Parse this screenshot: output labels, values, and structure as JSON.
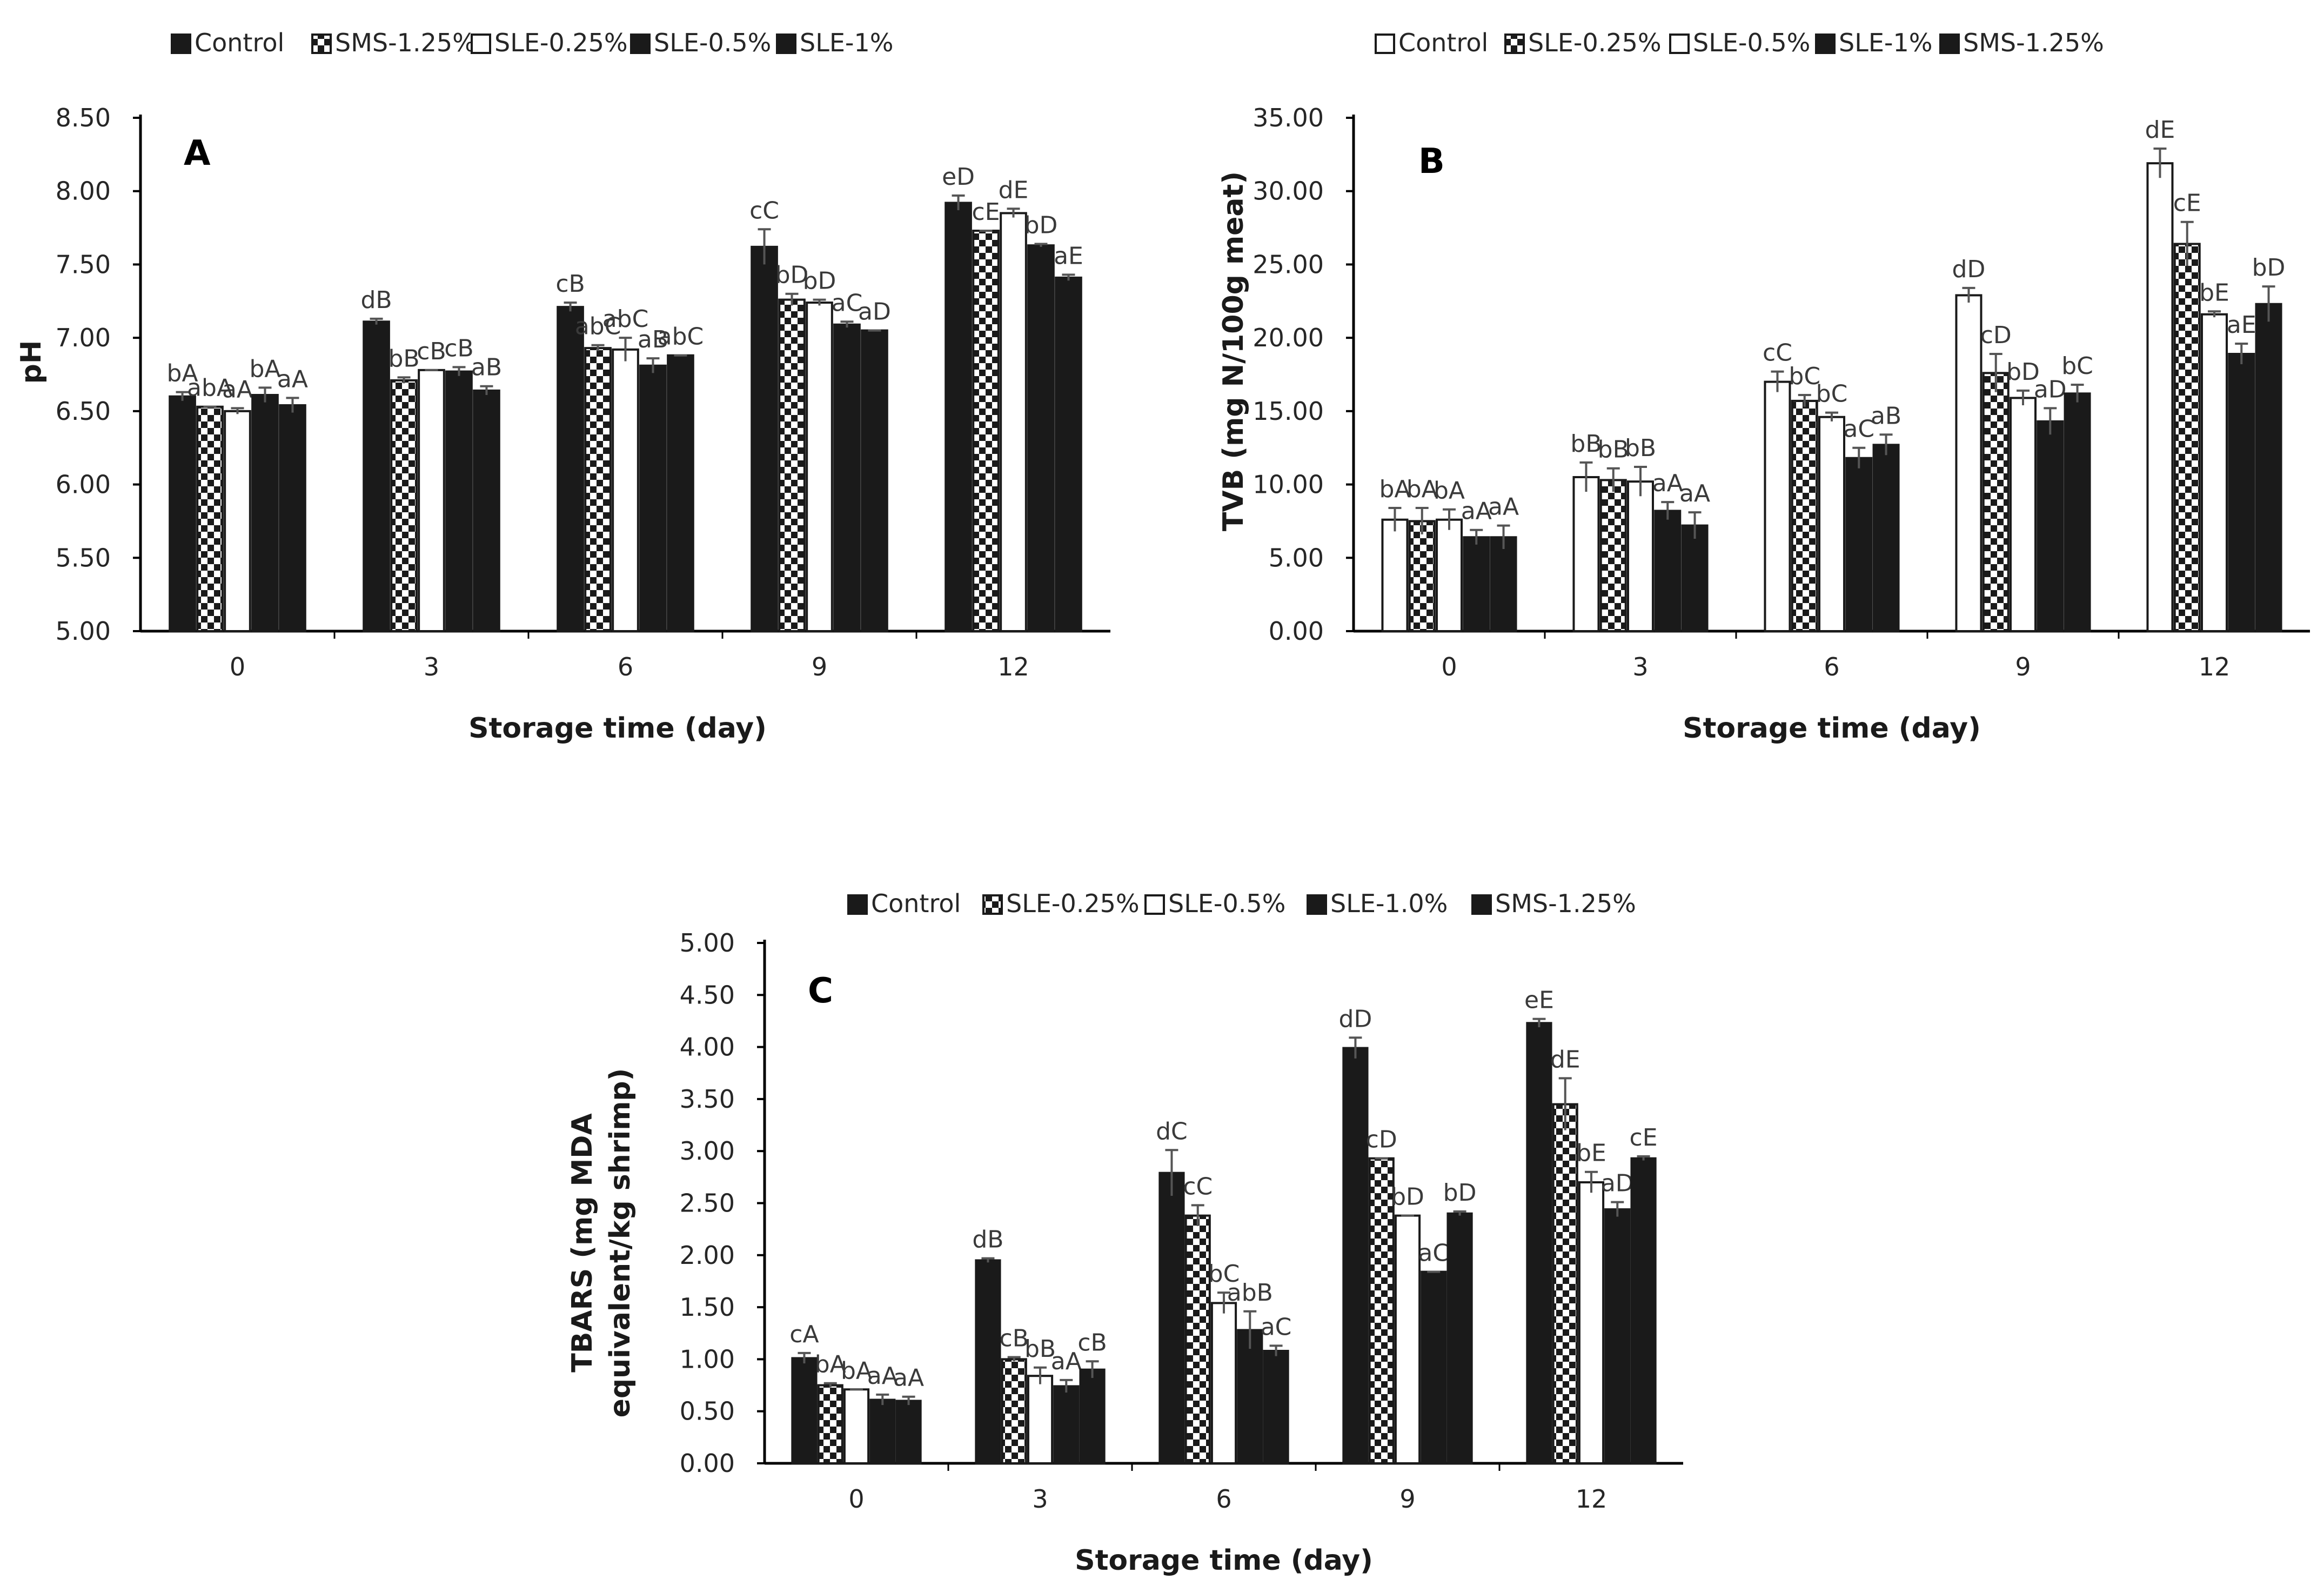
{
  "chart_data": [
    {
      "type": "bar",
      "panel_label": "A",
      "categories": [
        "0",
        "3",
        "6",
        "9",
        "12"
      ],
      "xlabel": "Storage time (day)",
      "ylabel": "pH",
      "ylim": [
        5.0,
        8.5
      ],
      "yticks": [
        "5.00",
        "5.50",
        "6.00",
        "6.50",
        "7.00",
        "7.50",
        "8.00",
        "8.50"
      ],
      "legend_position": "top",
      "grid": false,
      "series": [
        {
          "name": "Control",
          "pattern": "solid",
          "values": [
            6.6,
            7.11,
            7.21,
            7.62,
            7.92
          ],
          "errors": [
            0.03,
            0.02,
            0.03,
            0.12,
            0.05
          ],
          "labels": [
            "bA",
            "dB",
            "cB",
            "cC",
            "eD"
          ]
        },
        {
          "name": "SMS-1.25%",
          "pattern": "checker",
          "values": [
            6.53,
            6.71,
            6.93,
            7.26,
            7.73
          ],
          "errors": [
            0.0,
            0.02,
            0.02,
            0.04,
            0.0
          ],
          "labels": [
            "abA",
            "bB",
            "abC",
            "bD",
            "cE"
          ]
        },
        {
          "name": "SLE-0.25%",
          "pattern": "white",
          "values": [
            6.5,
            6.78,
            6.92,
            7.24,
            7.85
          ],
          "errors": [
            0.02,
            0.0,
            0.08,
            0.02,
            0.03
          ],
          "labels": [
            "aA",
            "cB",
            "abC",
            "bD",
            "dE"
          ]
        },
        {
          "name": "SLE-0.5%",
          "pattern": "solid",
          "values": [
            6.61,
            6.77,
            6.81,
            7.09,
            7.63
          ],
          "errors": [
            0.05,
            0.03,
            0.05,
            0.02,
            0.01
          ],
          "labels": [
            "bA",
            "cB",
            "aB",
            "aC",
            "bD"
          ]
        },
        {
          "name": "SLE-1%",
          "pattern": "solid",
          "values": [
            6.54,
            6.64,
            6.88,
            7.05,
            7.41
          ],
          "errors": [
            0.05,
            0.03,
            0.0,
            0.0,
            0.02
          ],
          "labels": [
            "aA",
            "aB",
            "abC",
            "aD",
            "aE"
          ]
        }
      ]
    },
    {
      "type": "bar",
      "panel_label": "B",
      "categories": [
        "0",
        "3",
        "6",
        "9",
        "12"
      ],
      "xlabel": "Storage time (day)",
      "ylabel": "TVB (mg N/100g meat)",
      "ylim": [
        0,
        35
      ],
      "yticks": [
        "0.00",
        "5.00",
        "10.00",
        "15.00",
        "20.00",
        "25.00",
        "30.00",
        "35.00"
      ],
      "legend_position": "top",
      "grid": false,
      "series": [
        {
          "name": "Control",
          "pattern": "white",
          "values": [
            7.6,
            10.5,
            17.0,
            22.9,
            31.9
          ],
          "errors": [
            0.8,
            1.0,
            0.7,
            0.5,
            1.0
          ],
          "labels": [
            "bA",
            "bB",
            "cC",
            "dD",
            "dE"
          ]
        },
        {
          "name": "SLE-0.25%",
          "pattern": "checker",
          "values": [
            7.5,
            10.3,
            15.7,
            17.6,
            26.4
          ],
          "errors": [
            0.9,
            0.8,
            0.4,
            1.3,
            1.5
          ],
          "labels": [
            "bA",
            "bB",
            "bC",
            "cD",
            "cE"
          ]
        },
        {
          "name": "SLE-0.5%",
          "pattern": "white",
          "values": [
            7.6,
            10.2,
            14.6,
            15.9,
            21.6
          ],
          "errors": [
            0.7,
            1.0,
            0.3,
            0.5,
            0.2
          ],
          "labels": [
            "bA",
            "bB",
            "bC",
            "bD",
            "bE"
          ]
        },
        {
          "name": "SLE-1%",
          "pattern": "solid",
          "values": [
            6.4,
            8.2,
            11.8,
            14.3,
            18.9
          ],
          "errors": [
            0.5,
            0.6,
            0.7,
            0.9,
            0.7
          ],
          "labels": [
            "aA",
            "aA",
            "aC",
            "aD",
            "aE"
          ]
        },
        {
          "name": "SMS-1.25%",
          "pattern": "solid",
          "values": [
            6.4,
            7.2,
            12.7,
            16.2,
            22.3
          ],
          "errors": [
            0.8,
            0.9,
            0.7,
            0.6,
            1.2
          ],
          "labels": [
            "aA",
            "aA",
            "aB",
            "bC",
            "bD"
          ]
        }
      ]
    },
    {
      "type": "bar",
      "panel_label": "C",
      "categories": [
        "0",
        "3",
        "6",
        "9",
        "12"
      ],
      "xlabel": "Storage time (day)",
      "ylabel": "TBARS (mg MDA equivalent/kg shrimp)",
      "ylim": [
        0,
        5
      ],
      "yticks": [
        "0.00",
        "0.50",
        "1.00",
        "1.50",
        "2.00",
        "2.50",
        "3.00",
        "3.50",
        "4.00",
        "4.50",
        "5.00"
      ],
      "legend_position": "top",
      "grid": false,
      "series": [
        {
          "name": "Control",
          "pattern": "solid",
          "values": [
            1.01,
            1.95,
            2.79,
            3.99,
            4.23
          ],
          "errors": [
            0.05,
            0.02,
            0.22,
            0.1,
            0.04
          ],
          "labels": [
            "cA",
            "dB",
            "dC",
            "dD",
            "eE"
          ]
        },
        {
          "name": "SLE-0.25%",
          "pattern": "checker",
          "values": [
            0.75,
            1.0,
            2.38,
            2.93,
            3.45
          ],
          "errors": [
            0.02,
            0.02,
            0.1,
            0.0,
            0.25
          ],
          "labels": [
            "bA",
            "cB",
            "cC",
            "cD",
            "dE"
          ]
        },
        {
          "name": "SLE-0.5%",
          "pattern": "white",
          "values": [
            0.71,
            0.84,
            1.54,
            2.38,
            2.7
          ],
          "errors": [
            0.0,
            0.08,
            0.1,
            0.0,
            0.1
          ],
          "labels": [
            "bA",
            "bB",
            "bC",
            "bD",
            "bE"
          ]
        },
        {
          "name": "SLE-1.0%",
          "pattern": "solid",
          "values": [
            0.61,
            0.74,
            1.28,
            1.84,
            2.44
          ],
          "errors": [
            0.05,
            0.06,
            0.18,
            0.0,
            0.07
          ],
          "labels": [
            "aA",
            "aA",
            "abB",
            "aC",
            "aD"
          ]
        },
        {
          "name": "SMS-1.25%",
          "pattern": "solid",
          "values": [
            0.6,
            0.9,
            1.08,
            2.4,
            2.93
          ],
          "errors": [
            0.04,
            0.08,
            0.05,
            0.02,
            0.02
          ],
          "labels": [
            "aA",
            "cB",
            "aC",
            "bD",
            "cE"
          ]
        }
      ]
    }
  ]
}
